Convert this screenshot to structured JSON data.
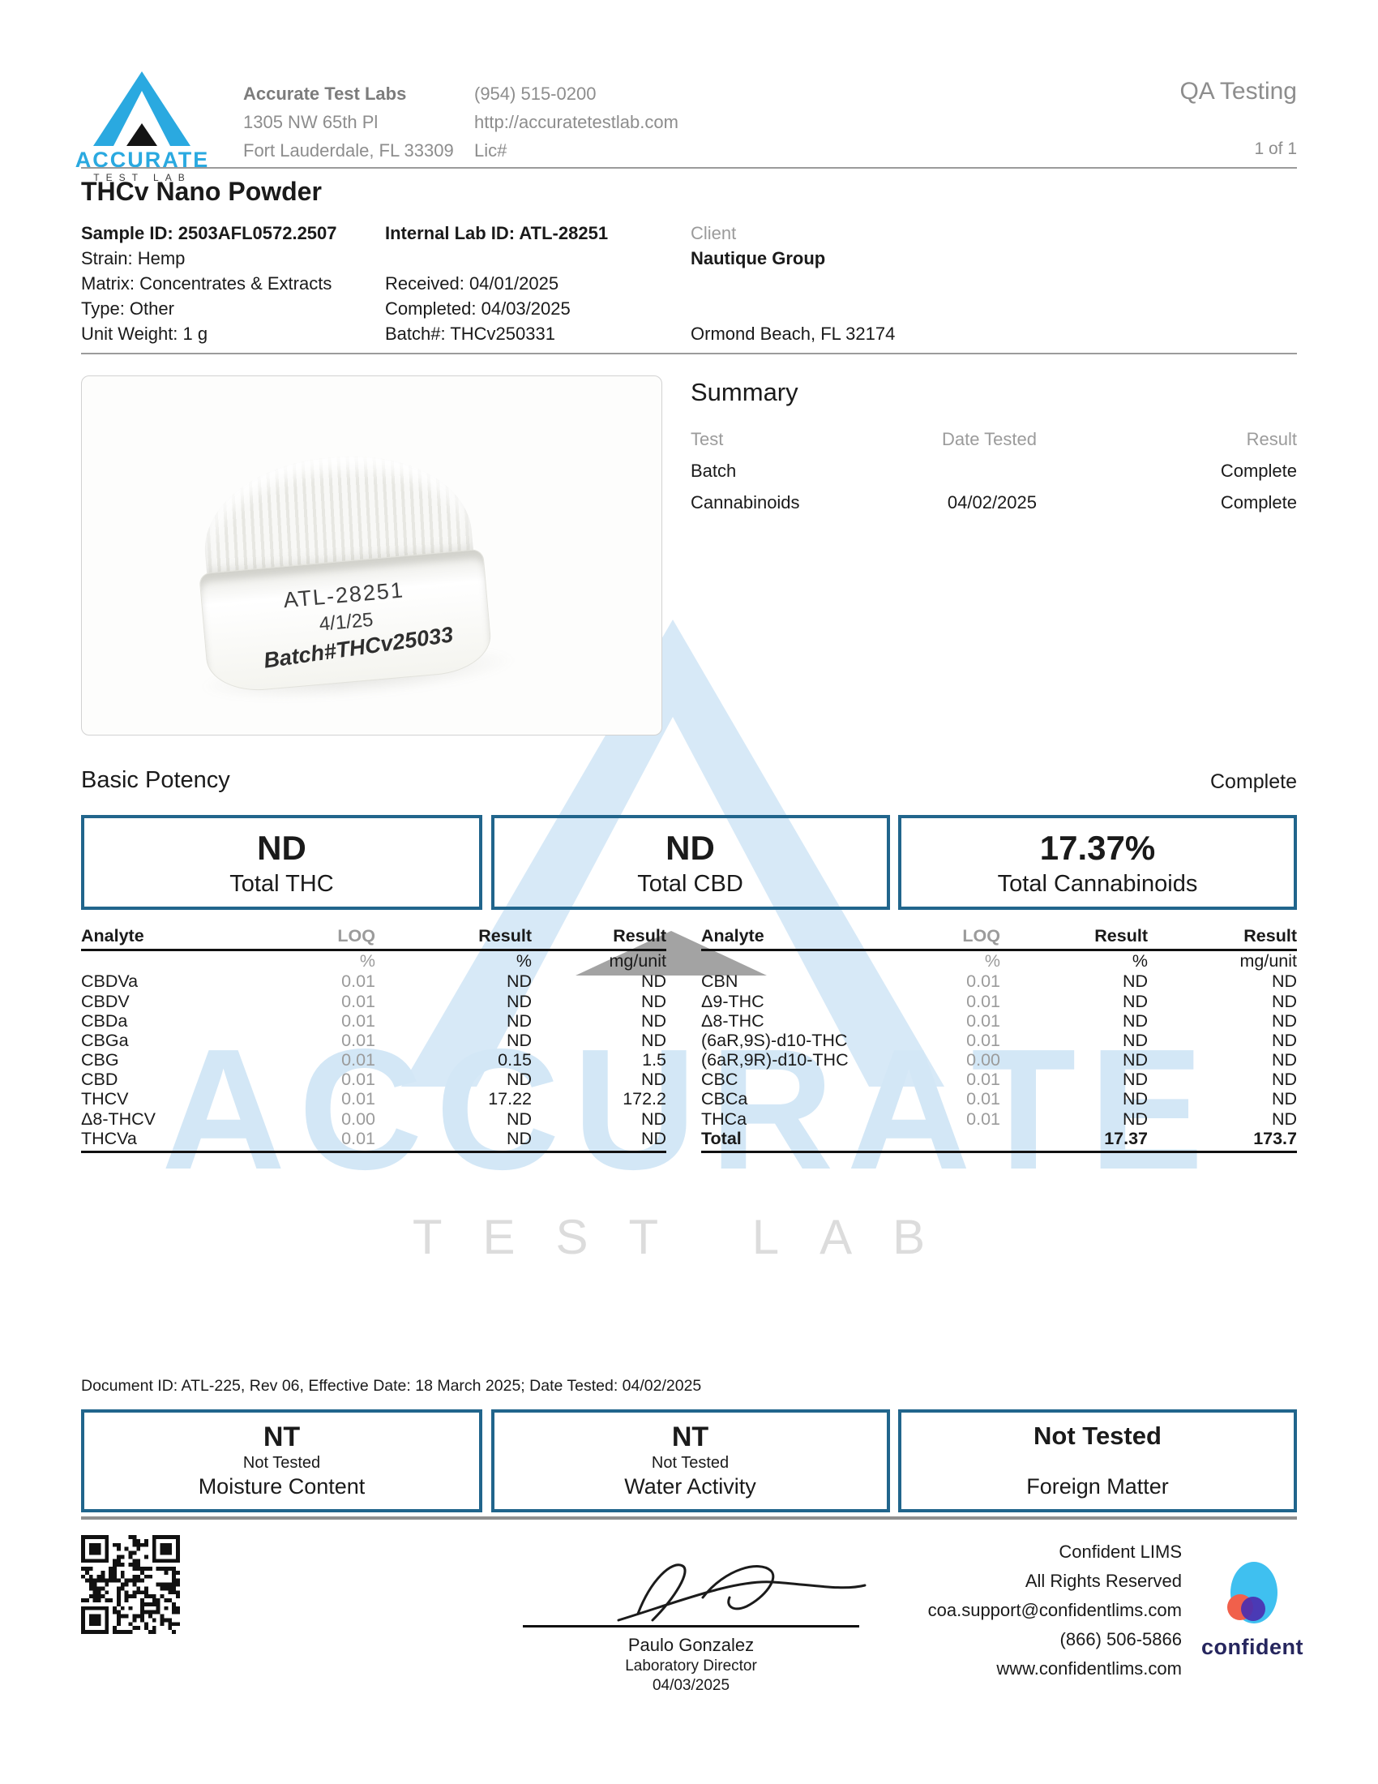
{
  "page": {
    "report_type": "QA Testing",
    "page_number": "1 of 1"
  },
  "lab": {
    "brand_word": "ACCURATE",
    "brand_sub": "TEST LAB",
    "name": "Accurate Test Labs",
    "address1": "1305 NW 65th Pl",
    "address2": "Fort Lauderdale, FL 33309",
    "phone": "(954) 515-0200",
    "website": "http://accuratetestlab.com",
    "license": "Lic#"
  },
  "sample": {
    "product_title": "THCv Nano Powder",
    "sample_id": "Sample ID: 2503AFL0572.2507",
    "strain": "Strain: Hemp",
    "matrix": "Matrix: Concentrates & Extracts",
    "type": "Type: Other",
    "unit_weight": "Unit Weight: 1 g",
    "internal_lab_id": "Internal Lab ID: ATL-28251",
    "received": "Received: 04/01/2025",
    "completed": "Completed: 04/03/2025",
    "batch": "Batch#: THCv250331"
  },
  "client": {
    "label": "Client",
    "name": "Nautique Group",
    "location": "Ormond Beach, FL 32174"
  },
  "photo": {
    "jar_line1": "ATL-28251",
    "jar_line2": "4/1/25",
    "jar_line3": "Batch#THCv25033"
  },
  "summary": {
    "title": "Summary",
    "col_test": "Test",
    "col_date": "Date Tested",
    "col_result": "Result",
    "rows": [
      {
        "test": "Batch",
        "date": "",
        "result": "Complete"
      },
      {
        "test": "Cannabinoids",
        "date": "04/02/2025",
        "result": "Complete"
      }
    ]
  },
  "potency": {
    "section_title": "Basic Potency",
    "section_status": "Complete",
    "cards": [
      {
        "value": "ND",
        "label": "Total THC"
      },
      {
        "value": "ND",
        "label": "Total CBD"
      },
      {
        "value": "17.37%",
        "label": "Total Cannabinoids"
      }
    ],
    "header": {
      "analyte": "Analyte",
      "loq": "LOQ",
      "result1": "Result",
      "result2": "Result"
    },
    "units": {
      "loq": "%",
      "result1": "%",
      "result2": "mg/unit"
    },
    "left_rows": [
      {
        "analyte": "CBDVa",
        "loq": "0.01",
        "pct": "ND",
        "mg": "ND"
      },
      {
        "analyte": "CBDV",
        "loq": "0.01",
        "pct": "ND",
        "mg": "ND"
      },
      {
        "analyte": "CBDa",
        "loq": "0.01",
        "pct": "ND",
        "mg": "ND"
      },
      {
        "analyte": "CBGa",
        "loq": "0.01",
        "pct": "ND",
        "mg": "ND"
      },
      {
        "analyte": "CBG",
        "loq": "0.01",
        "pct": "0.15",
        "mg": "1.5"
      },
      {
        "analyte": "CBD",
        "loq": "0.01",
        "pct": "ND",
        "mg": "ND"
      },
      {
        "analyte": "THCV",
        "loq": "0.01",
        "pct": "17.22",
        "mg": "172.2"
      },
      {
        "analyte": "Δ8-THCV",
        "loq": "0.00",
        "pct": "ND",
        "mg": "ND"
      },
      {
        "analyte": "THCVa",
        "loq": "0.01",
        "pct": "ND",
        "mg": "ND"
      }
    ],
    "right_rows": [
      {
        "analyte": "CBN",
        "loq": "0.01",
        "pct": "ND",
        "mg": "ND"
      },
      {
        "analyte": "Δ9-THC",
        "loq": "0.01",
        "pct": "ND",
        "mg": "ND"
      },
      {
        "analyte": "Δ8-THC",
        "loq": "0.01",
        "pct": "ND",
        "mg": "ND"
      },
      {
        "analyte": "(6aR,9S)-d10-THC",
        "loq": "0.01",
        "pct": "ND",
        "mg": "ND"
      },
      {
        "analyte": "(6aR,9R)-d10-THC",
        "loq": "0.00",
        "pct": "ND",
        "mg": "ND"
      },
      {
        "analyte": "CBC",
        "loq": "0.01",
        "pct": "ND",
        "mg": "ND"
      },
      {
        "analyte": "CBCa",
        "loq": "0.01",
        "pct": "ND",
        "mg": "ND"
      },
      {
        "analyte": "THCa",
        "loq": "0.01",
        "pct": "ND",
        "mg": "ND"
      },
      {
        "analyte": "Total",
        "loq": "",
        "pct": "17.37",
        "mg": "173.7",
        "bold": true
      }
    ]
  },
  "watermark": {
    "word": "ACCURATE",
    "sub": "TEST LAB"
  },
  "footnote": "Document ID: ATL-225, Rev 06, Effective Date: 18 March 2025; Date Tested: 04/02/2025",
  "other_tests": [
    {
      "value": "NT",
      "subtext": "Not Tested",
      "label": "Moisture Content"
    },
    {
      "value": "NT",
      "subtext": "Not Tested",
      "label": "Water Activity"
    },
    {
      "value": "Not Tested",
      "subtext": "",
      "label": "Foreign Matter"
    }
  ],
  "signature": {
    "name": "Paulo Gonzalez",
    "role": "Laboratory Director",
    "date": "04/03/2025"
  },
  "lims": {
    "line1": "Confident LIMS",
    "line2": "All Rights Reserved",
    "line3": "coa.support@confidentlims.com",
    "line4": "(866) 506-5866",
    "line5": "www.confidentlims.com",
    "logo_text": "confident"
  },
  "colors": {
    "brand_blue": "#2AA9E0",
    "box_border": "#21658C",
    "watermark_blue": "#D3E7F6",
    "watermark_gray": "#DCDCDC",
    "confident_blue": "#3FC0F0",
    "confident_orange": "#F1604B",
    "confident_purple": "#4B2FB0",
    "confident_navy": "#26265E"
  }
}
